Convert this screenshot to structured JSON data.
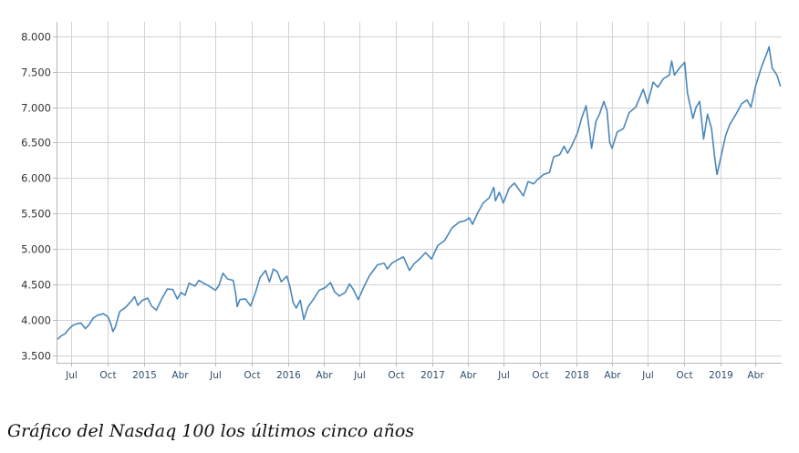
{
  "caption": "Gráfico del Nasdaq 100 los últimos cinco años",
  "colors": {
    "line": "#4a87bb",
    "grid": "#d3d3d3",
    "axis": "#b8b8b8"
  },
  "chart_data": {
    "type": "line",
    "title": "",
    "xlabel": "",
    "ylabel": "",
    "xlim": [
      "2014-05-24",
      "2019-06-06"
    ],
    "ylim": [
      3400,
      8200
    ],
    "grid": true,
    "y_ticks": [
      {
        "value": 3500,
        "label": "3.500"
      },
      {
        "value": 4000,
        "label": "4.000"
      },
      {
        "value": 4500,
        "label": "4.500"
      },
      {
        "value": 5000,
        "label": "5.000"
      },
      {
        "value": 5500,
        "label": "5.500"
      },
      {
        "value": 6000,
        "label": "6.000"
      },
      {
        "value": 6500,
        "label": "6.500"
      },
      {
        "value": 7000,
        "label": "7.000"
      },
      {
        "value": 7500,
        "label": "7.500"
      },
      {
        "value": 8000,
        "label": "8.000"
      }
    ],
    "x_ticks": [
      {
        "date": "2014-07-01",
        "label": "Jul"
      },
      {
        "date": "2014-10-01",
        "label": "Oct"
      },
      {
        "date": "2015-01-01",
        "label": "2015"
      },
      {
        "date": "2015-04-01",
        "label": "Abr"
      },
      {
        "date": "2015-07-01",
        "label": "Jul"
      },
      {
        "date": "2015-10-01",
        "label": "Oct"
      },
      {
        "date": "2016-01-01",
        "label": "2016"
      },
      {
        "date": "2016-04-01",
        "label": "Abr"
      },
      {
        "date": "2016-07-01",
        "label": "Jul"
      },
      {
        "date": "2016-10-01",
        "label": "Oct"
      },
      {
        "date": "2017-01-01",
        "label": "2017"
      },
      {
        "date": "2017-04-01",
        "label": "Abr"
      },
      {
        "date": "2017-07-01",
        "label": "Jul"
      },
      {
        "date": "2017-10-01",
        "label": "Oct"
      },
      {
        "date": "2018-01-01",
        "label": "2018"
      },
      {
        "date": "2018-04-01",
        "label": "Abr"
      },
      {
        "date": "2018-07-01",
        "label": "Jul"
      },
      {
        "date": "2018-10-01",
        "label": "Oct"
      },
      {
        "date": "2019-01-01",
        "label": "2019"
      },
      {
        "date": "2019-04-01",
        "label": "Abr"
      }
    ],
    "series": [
      {
        "name": "",
        "points": [
          [
            "2014-05-26",
            3730
          ],
          [
            "2014-06-05",
            3780
          ],
          [
            "2014-06-15",
            3810
          ],
          [
            "2014-06-25",
            3880
          ],
          [
            "2014-07-05",
            3930
          ],
          [
            "2014-07-15",
            3950
          ],
          [
            "2014-07-25",
            3960
          ],
          [
            "2014-08-05",
            3880
          ],
          [
            "2014-08-15",
            3940
          ],
          [
            "2014-08-25",
            4030
          ],
          [
            "2014-09-05",
            4070
          ],
          [
            "2014-09-20",
            4090
          ],
          [
            "2014-10-01",
            4050
          ],
          [
            "2014-10-08",
            3960
          ],
          [
            "2014-10-14",
            3840
          ],
          [
            "2014-10-20",
            3900
          ],
          [
            "2014-10-31",
            4120
          ],
          [
            "2014-11-15",
            4180
          ],
          [
            "2014-11-30",
            4270
          ],
          [
            "2014-12-08",
            4330
          ],
          [
            "2014-12-16",
            4210
          ],
          [
            "2014-12-28",
            4280
          ],
          [
            "2015-01-10",
            4310
          ],
          [
            "2015-01-20",
            4200
          ],
          [
            "2015-02-01",
            4140
          ],
          [
            "2015-02-15",
            4300
          ],
          [
            "2015-03-01",
            4440
          ],
          [
            "2015-03-15",
            4430
          ],
          [
            "2015-03-26",
            4300
          ],
          [
            "2015-04-05",
            4390
          ],
          [
            "2015-04-15",
            4350
          ],
          [
            "2015-04-25",
            4520
          ],
          [
            "2015-05-10",
            4480
          ],
          [
            "2015-05-20",
            4560
          ],
          [
            "2015-06-01",
            4520
          ],
          [
            "2015-06-15",
            4480
          ],
          [
            "2015-07-01",
            4420
          ],
          [
            "2015-07-10",
            4490
          ],
          [
            "2015-07-20",
            4660
          ],
          [
            "2015-08-01",
            4580
          ],
          [
            "2015-08-15",
            4560
          ],
          [
            "2015-08-21",
            4380
          ],
          [
            "2015-08-25",
            4190
          ],
          [
            "2015-09-01",
            4290
          ],
          [
            "2015-09-15",
            4300
          ],
          [
            "2015-09-28",
            4200
          ],
          [
            "2015-10-10",
            4380
          ],
          [
            "2015-10-22",
            4600
          ],
          [
            "2015-11-05",
            4700
          ],
          [
            "2015-11-15",
            4540
          ],
          [
            "2015-11-25",
            4720
          ],
          [
            "2015-12-05",
            4680
          ],
          [
            "2015-12-15",
            4540
          ],
          [
            "2015-12-29",
            4620
          ],
          [
            "2016-01-06",
            4470
          ],
          [
            "2016-01-14",
            4250
          ],
          [
            "2016-01-22",
            4170
          ],
          [
            "2016-02-01",
            4280
          ],
          [
            "2016-02-10",
            4010
          ],
          [
            "2016-02-20",
            4180
          ],
          [
            "2016-03-05",
            4290
          ],
          [
            "2016-03-20",
            4420
          ],
          [
            "2016-04-05",
            4460
          ],
          [
            "2016-04-18",
            4530
          ],
          [
            "2016-04-28",
            4400
          ],
          [
            "2016-05-10",
            4340
          ],
          [
            "2016-05-25",
            4390
          ],
          [
            "2016-06-05",
            4510
          ],
          [
            "2016-06-15",
            4430
          ],
          [
            "2016-06-27",
            4290
          ],
          [
            "2016-07-10",
            4450
          ],
          [
            "2016-07-25",
            4620
          ],
          [
            "2016-08-15",
            4780
          ],
          [
            "2016-09-01",
            4800
          ],
          [
            "2016-09-09",
            4720
          ],
          [
            "2016-09-20",
            4800
          ],
          [
            "2016-10-05",
            4850
          ],
          [
            "2016-10-20",
            4890
          ],
          [
            "2016-11-04",
            4700
          ],
          [
            "2016-11-15",
            4790
          ],
          [
            "2016-12-01",
            4870
          ],
          [
            "2016-12-15",
            4950
          ],
          [
            "2016-12-30",
            4860
          ],
          [
            "2017-01-15",
            5050
          ],
          [
            "2017-02-01",
            5120
          ],
          [
            "2017-02-20",
            5300
          ],
          [
            "2017-03-10",
            5380
          ],
          [
            "2017-03-25",
            5400
          ],
          [
            "2017-04-05",
            5440
          ],
          [
            "2017-04-13",
            5350
          ],
          [
            "2017-04-25",
            5500
          ],
          [
            "2017-05-10",
            5650
          ],
          [
            "2017-05-25",
            5720
          ],
          [
            "2017-06-06",
            5870
          ],
          [
            "2017-06-10",
            5680
          ],
          [
            "2017-06-20",
            5800
          ],
          [
            "2017-06-30",
            5650
          ],
          [
            "2017-07-15",
            5860
          ],
          [
            "2017-07-28",
            5930
          ],
          [
            "2017-08-10",
            5830
          ],
          [
            "2017-08-20",
            5750
          ],
          [
            "2017-09-01",
            5950
          ],
          [
            "2017-09-15",
            5920
          ],
          [
            "2017-09-25",
            5980
          ],
          [
            "2017-10-10",
            6050
          ],
          [
            "2017-10-25",
            6080
          ],
          [
            "2017-11-05",
            6300
          ],
          [
            "2017-11-20",
            6330
          ],
          [
            "2017-12-01",
            6450
          ],
          [
            "2017-12-10",
            6350
          ],
          [
            "2017-12-20",
            6450
          ],
          [
            "2018-01-05",
            6650
          ],
          [
            "2018-01-15",
            6850
          ],
          [
            "2018-01-26",
            7020
          ],
          [
            "2018-02-05",
            6600
          ],
          [
            "2018-02-09",
            6420
          ],
          [
            "2018-02-20",
            6800
          ],
          [
            "2018-03-01",
            6900
          ],
          [
            "2018-03-12",
            7080
          ],
          [
            "2018-03-20",
            6950
          ],
          [
            "2018-03-27",
            6500
          ],
          [
            "2018-04-02",
            6420
          ],
          [
            "2018-04-15",
            6650
          ],
          [
            "2018-05-01",
            6700
          ],
          [
            "2018-05-15",
            6920
          ],
          [
            "2018-06-01",
            7000
          ],
          [
            "2018-06-20",
            7250
          ],
          [
            "2018-07-01",
            7050
          ],
          [
            "2018-07-15",
            7350
          ],
          [
            "2018-07-27",
            7280
          ],
          [
            "2018-08-10",
            7400
          ],
          [
            "2018-08-25",
            7450
          ],
          [
            "2018-08-31",
            7650
          ],
          [
            "2018-09-07",
            7450
          ],
          [
            "2018-09-20",
            7550
          ],
          [
            "2018-10-03",
            7630
          ],
          [
            "2018-10-10",
            7200
          ],
          [
            "2018-10-24",
            6840
          ],
          [
            "2018-11-01",
            7000
          ],
          [
            "2018-11-10",
            7080
          ],
          [
            "2018-11-20",
            6550
          ],
          [
            "2018-11-30",
            6900
          ],
          [
            "2018-12-10",
            6700
          ],
          [
            "2018-12-18",
            6300
          ],
          [
            "2018-12-24",
            6050
          ],
          [
            "2019-01-05",
            6350
          ],
          [
            "2019-01-15",
            6600
          ],
          [
            "2019-01-25",
            6750
          ],
          [
            "2019-02-10",
            6900
          ],
          [
            "2019-02-25",
            7050
          ],
          [
            "2019-03-10",
            7100
          ],
          [
            "2019-03-20",
            7000
          ],
          [
            "2019-04-01",
            7300
          ],
          [
            "2019-04-15",
            7550
          ],
          [
            "2019-05-01",
            7780
          ],
          [
            "2019-05-05",
            7850
          ],
          [
            "2019-05-13",
            7550
          ],
          [
            "2019-05-25",
            7450
          ],
          [
            "2019-06-03",
            7290
          ]
        ]
      }
    ]
  }
}
